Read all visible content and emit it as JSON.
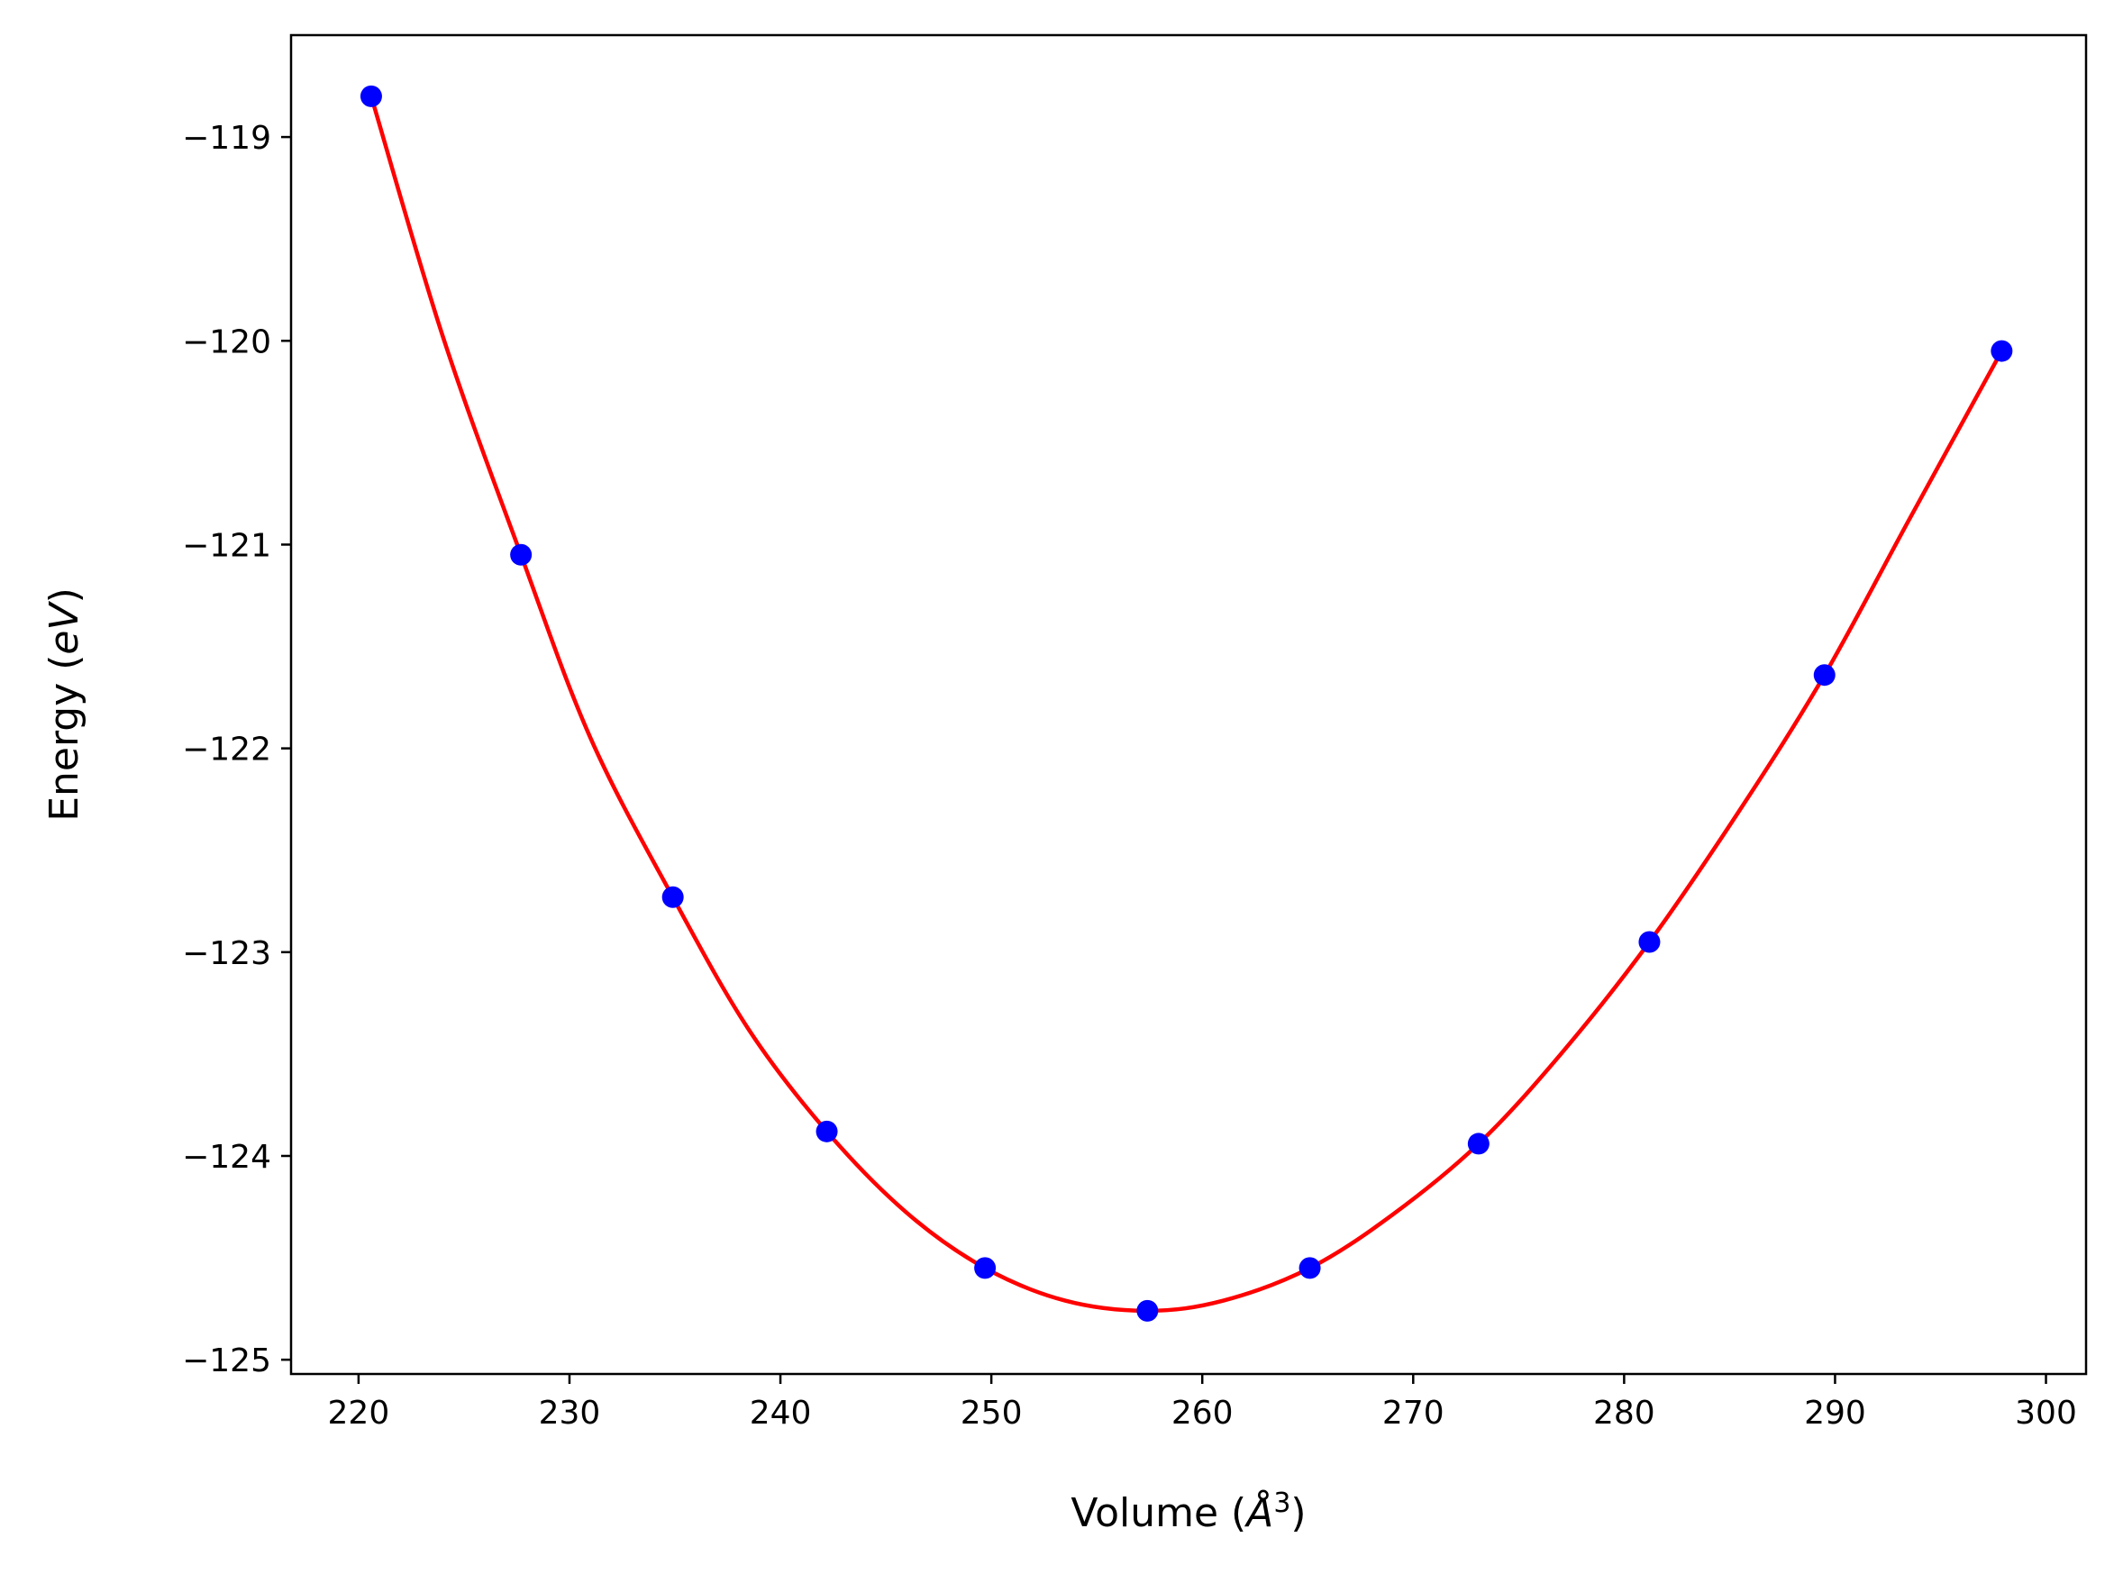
{
  "chart_data": {
    "type": "scatter",
    "title": "",
    "xlabel": "Volume ",
    "xlabel_unit": "Å",
    "xlabel_unit_exp": "3",
    "ylabel": "Energy ",
    "ylabel_unit": "eV",
    "xlim": [
      216.8,
      301.9
    ],
    "ylim": [
      -125.07,
      -118.5
    ],
    "xticks": [
      220,
      230,
      240,
      250,
      260,
      270,
      280,
      290,
      300
    ],
    "yticks": [
      -119,
      -120,
      -121,
      -122,
      -123,
      -124,
      -125
    ],
    "xtick_labels": [
      "220",
      "230",
      "240",
      "250",
      "260",
      "270",
      "280",
      "290",
      "300"
    ],
    "ytick_labels": [
      "−119",
      "−120",
      "−121",
      "−122",
      "−123",
      "−124",
      "−125"
    ],
    "grid": false,
    "series": [
      {
        "kind": "points",
        "color": "#0000ff",
        "x": [
          220.6,
          227.7,
          234.9,
          242.2,
          249.7,
          257.4,
          265.1,
          273.1,
          281.2,
          289.5,
          297.9
        ],
        "y": [
          -118.8,
          -121.05,
          -122.73,
          -123.88,
          -124.55,
          -124.76,
          -124.55,
          -123.94,
          -122.95,
          -121.64,
          -120.05
        ]
      },
      {
        "kind": "fit-line",
        "color": "#ff0000",
        "x": [
          220.6,
          224.0,
          227.7,
          231.0,
          234.9,
          238.5,
          242.2,
          246.0,
          249.7,
          253.5,
          257.4,
          261.0,
          265.1,
          269.0,
          273.1,
          277.0,
          281.2,
          285.5,
          289.5,
          293.5,
          297.9
        ],
        "y": [
          -118.8,
          -119.98,
          -121.05,
          -121.95,
          -122.73,
          -123.38,
          -123.88,
          -124.28,
          -124.55,
          -124.71,
          -124.76,
          -124.71,
          -124.55,
          -124.29,
          -123.94,
          -123.5,
          -122.95,
          -122.3,
          -121.64,
          -120.88,
          -120.05
        ]
      }
    ]
  }
}
